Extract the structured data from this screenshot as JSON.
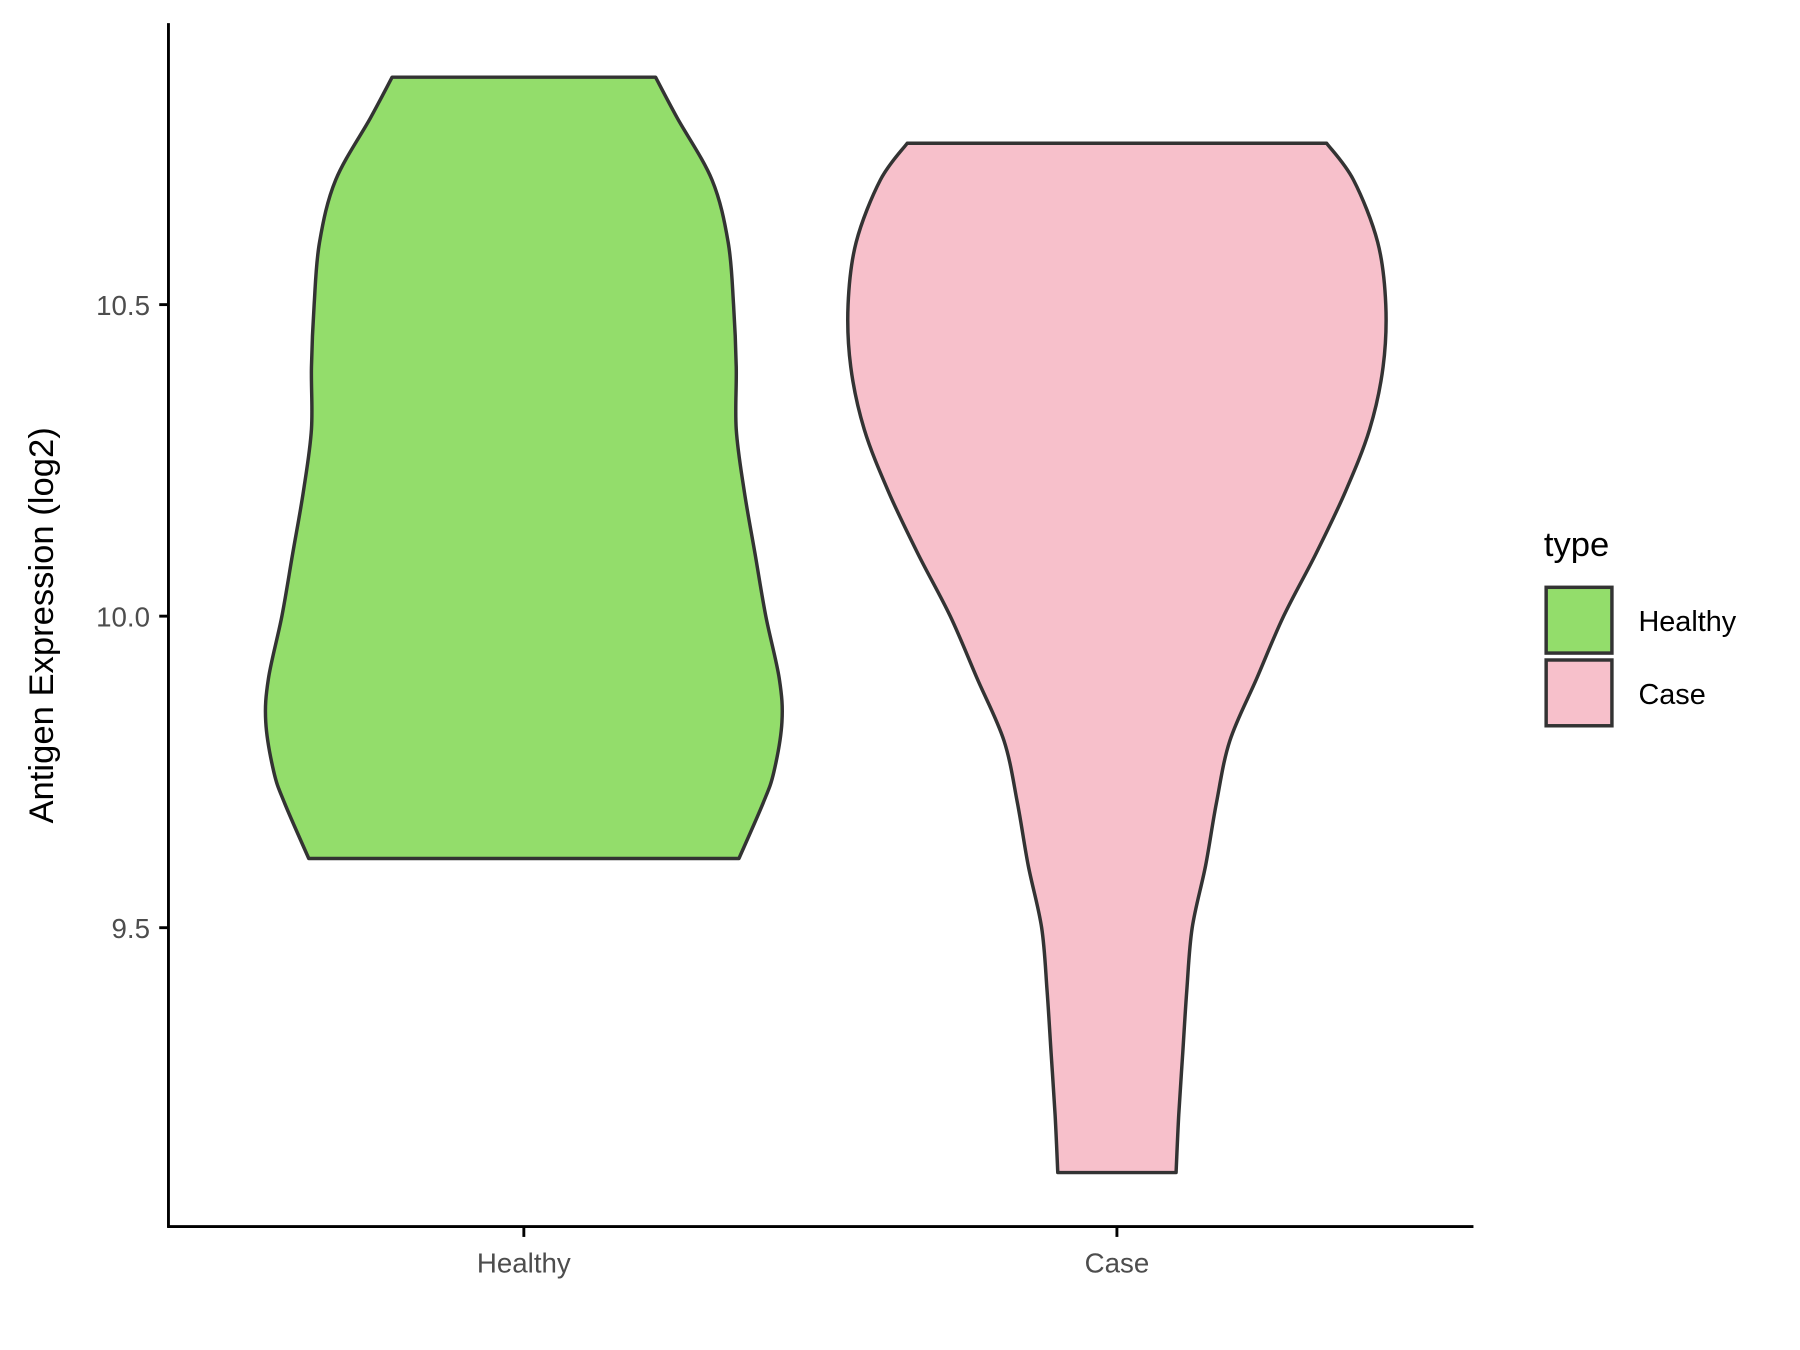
{
  "chart_data": {
    "type": "violin",
    "title": "",
    "xlabel": "",
    "ylabel": "Antigen Expression (log2)",
    "ylim": [
      9.07,
      10.95
    ],
    "yticks": [
      9.5,
      10.0,
      10.5
    ],
    "ytick_labels": [
      "9.5",
      "10.0",
      "10.5"
    ],
    "categories": [
      "Healthy",
      "Case"
    ],
    "grid": false,
    "legend": {
      "title": "type",
      "placement": "right",
      "entries": [
        "Healthy",
        "Case"
      ]
    },
    "series": [
      {
        "name": "Healthy",
        "color": "#93DD6B",
        "min": 9.611,
        "max": 10.865,
        "density_profile": [
          [
            9.611,
            0.8
          ],
          [
            9.7,
            0.89
          ],
          [
            9.75,
            0.93
          ],
          [
            9.83,
            0.96
          ],
          [
            9.9,
            0.95
          ],
          [
            10.0,
            0.9
          ],
          [
            10.1,
            0.86
          ],
          [
            10.2,
            0.82
          ],
          [
            10.3,
            0.79
          ],
          [
            10.4,
            0.79
          ],
          [
            10.5,
            0.78
          ],
          [
            10.6,
            0.76
          ],
          [
            10.7,
            0.7
          ],
          [
            10.8,
            0.57
          ],
          [
            10.865,
            0.49
          ]
        ]
      },
      {
        "name": "Case",
        "color": "#F7C0CB",
        "min": 9.107,
        "max": 10.759,
        "density_profile": [
          [
            9.107,
            0.22
          ],
          [
            9.2,
            0.23
          ],
          [
            9.3,
            0.245
          ],
          [
            9.4,
            0.26
          ],
          [
            9.5,
            0.28
          ],
          [
            9.6,
            0.33
          ],
          [
            9.7,
            0.37
          ],
          [
            9.8,
            0.42
          ],
          [
            9.9,
            0.52
          ],
          [
            10.0,
            0.62
          ],
          [
            10.1,
            0.74
          ],
          [
            10.2,
            0.85
          ],
          [
            10.3,
            0.94
          ],
          [
            10.4,
            0.99
          ],
          [
            10.5,
            1.0
          ],
          [
            10.6,
            0.97
          ],
          [
            10.7,
            0.88
          ],
          [
            10.759,
            0.78
          ]
        ]
      }
    ]
  }
}
